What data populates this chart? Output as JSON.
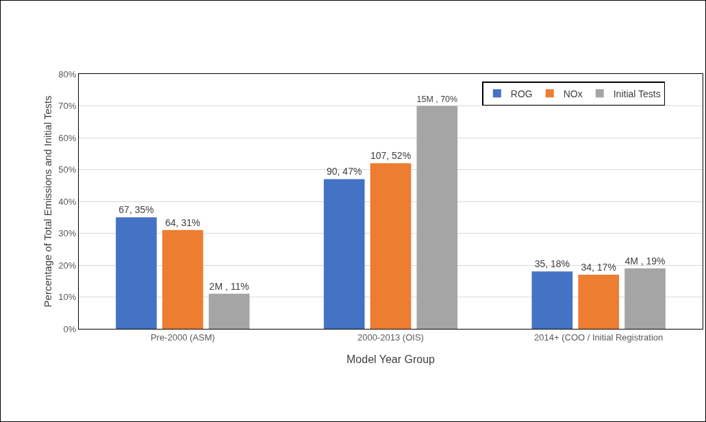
{
  "chart_data": {
    "type": "bar",
    "xlabel": "Model Year Group",
    "ylabel": "Percentage of Total Emissions and Initial Tests",
    "categories": [
      "Pre-2000 (ASM)",
      "2000-2013 (OIS)",
      "2014+ (COO / Initial Registration"
    ],
    "series": [
      {
        "name": "ROG",
        "color": "#4472c4",
        "values": [
          35,
          47,
          18
        ],
        "value_labels": [
          "67, 35%",
          "90, 47%",
          "35, 18%"
        ]
      },
      {
        "name": "NOx",
        "color": "#ed7d31",
        "values": [
          31,
          52,
          17
        ],
        "value_labels": [
          "64, 31%",
          "107, 52%",
          "34, 17%"
        ]
      },
      {
        "name": "Initial Tests",
        "color": "#a5a5a5",
        "values": [
          11,
          70,
          19
        ],
        "value_labels": [
          "2M , 11%",
          "15M , 70%",
          "4M , 19%"
        ]
      }
    ],
    "ylim": [
      0,
      80
    ],
    "yticks": [
      {
        "value": 0,
        "label": "0%"
      },
      {
        "value": 10,
        "label": "10%"
      },
      {
        "value": 20,
        "label": "20%"
      },
      {
        "value": 30,
        "label": "30%"
      },
      {
        "value": 40,
        "label": "40%"
      },
      {
        "value": 50,
        "label": "50%"
      },
      {
        "value": 60,
        "label": "60%"
      },
      {
        "value": 70,
        "label": "70%"
      },
      {
        "value": 80,
        "label": "80%"
      }
    ],
    "grid": "y",
    "legend": "top right"
  }
}
